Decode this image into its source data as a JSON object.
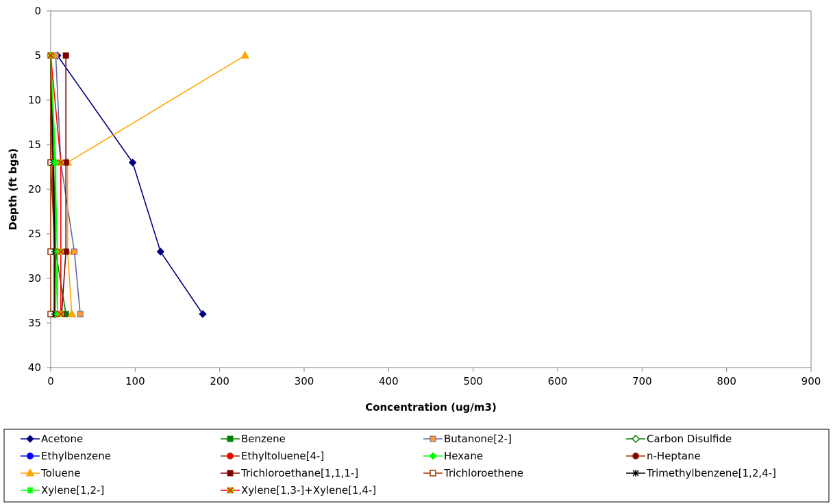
{
  "chart_data": {
    "type": "line",
    "title": "",
    "xlabel": "Concentration (ug/m3)",
    "ylabel": "Depth (ft bgs)",
    "xlim": [
      0,
      900
    ],
    "ylim": [
      0,
      40
    ],
    "y_inverted": true,
    "x_ticks": [
      0,
      100,
      200,
      300,
      400,
      500,
      600,
      700,
      800,
      900
    ],
    "y_ticks": [
      0,
      5,
      10,
      15,
      20,
      25,
      30,
      35,
      40
    ],
    "grid": false,
    "legend_position": "bottom",
    "series": [
      {
        "name": "Acetone",
        "color": "#000080",
        "marker": "diamond",
        "points": [
          [
            8,
            5
          ],
          [
            97,
            17
          ],
          [
            130,
            27
          ],
          [
            180,
            34
          ]
        ]
      },
      {
        "name": "Benzene",
        "color": "#008000",
        "marker": "square",
        "points": [
          [
            0,
            5
          ],
          [
            3,
            17
          ],
          [
            6,
            27
          ],
          [
            18,
            34
          ]
        ]
      },
      {
        "name": "Butanone[2-]",
        "color": "#666699",
        "marker": "square-orange",
        "points": [
          [
            6,
            5
          ],
          [
            12,
            17
          ],
          [
            28,
            27
          ],
          [
            35,
            34
          ]
        ]
      },
      {
        "name": "Carbon Disulfide",
        "color": "#008000",
        "marker": "diamond-open",
        "points": [
          [
            0,
            5
          ],
          [
            5,
            17
          ],
          [
            5,
            27
          ],
          [
            5,
            34
          ]
        ]
      },
      {
        "name": "Ethylbenzene",
        "color": "#0000ff",
        "marker": "circle",
        "points": [
          [
            0,
            5
          ],
          [
            2,
            17
          ],
          [
            4,
            27
          ],
          [
            4,
            34
          ]
        ]
      },
      {
        "name": "Ethyltoluene[4-]",
        "color": "#993300",
        "marker": "circle-red",
        "points": [
          [
            0,
            5
          ],
          [
            2,
            17
          ],
          [
            4,
            27
          ],
          [
            4,
            34
          ]
        ]
      },
      {
        "name": "Hexane",
        "color": "#00ff00",
        "marker": "diamond",
        "points": [
          [
            0,
            5
          ],
          [
            6,
            17
          ],
          [
            6,
            27
          ],
          [
            8,
            34
          ]
        ]
      },
      {
        "name": "n-Heptane",
        "color": "#993300",
        "marker": "circle-dark",
        "points": [
          [
            0,
            5
          ],
          [
            0,
            17
          ],
          [
            5,
            27
          ],
          [
            5,
            34
          ]
        ]
      },
      {
        "name": "Toluene",
        "color": "#ffa500",
        "marker": "triangle",
        "points": [
          [
            230,
            5
          ],
          [
            20,
            17
          ],
          [
            20,
            27
          ],
          [
            25,
            34
          ]
        ]
      },
      {
        "name": "Trichloroethane[1,1,1-]",
        "color": "#800000",
        "marker": "square",
        "points": [
          [
            18,
            5
          ],
          [
            18,
            17
          ],
          [
            18,
            27
          ],
          [
            13,
            34
          ]
        ]
      },
      {
        "name": "Trichloroethene",
        "color": "#993300",
        "marker": "square-open",
        "points": [
          [
            0,
            5
          ],
          [
            0,
            17
          ],
          [
            0,
            27
          ],
          [
            0,
            34
          ]
        ]
      },
      {
        "name": "Trimethylbenzene[1,2,4-]",
        "color": "#000000",
        "marker": "star",
        "points": [
          [
            0,
            5
          ],
          [
            3,
            17
          ],
          [
            5,
            27
          ],
          [
            5,
            34
          ]
        ]
      },
      {
        "name": "Xylene[1,2-]",
        "color": "#00ff00",
        "marker": "asterisk",
        "points": [
          [
            0,
            5
          ],
          [
            5,
            17
          ],
          [
            8,
            27
          ],
          [
            8,
            34
          ]
        ]
      },
      {
        "name": "Xylene[1,3-]+Xylene[1,4-]",
        "color": "#ff0000",
        "marker": "x-box",
        "points": [
          [
            0,
            5
          ],
          [
            12,
            17
          ],
          [
            12,
            27
          ],
          [
            12,
            34
          ]
        ]
      }
    ]
  }
}
